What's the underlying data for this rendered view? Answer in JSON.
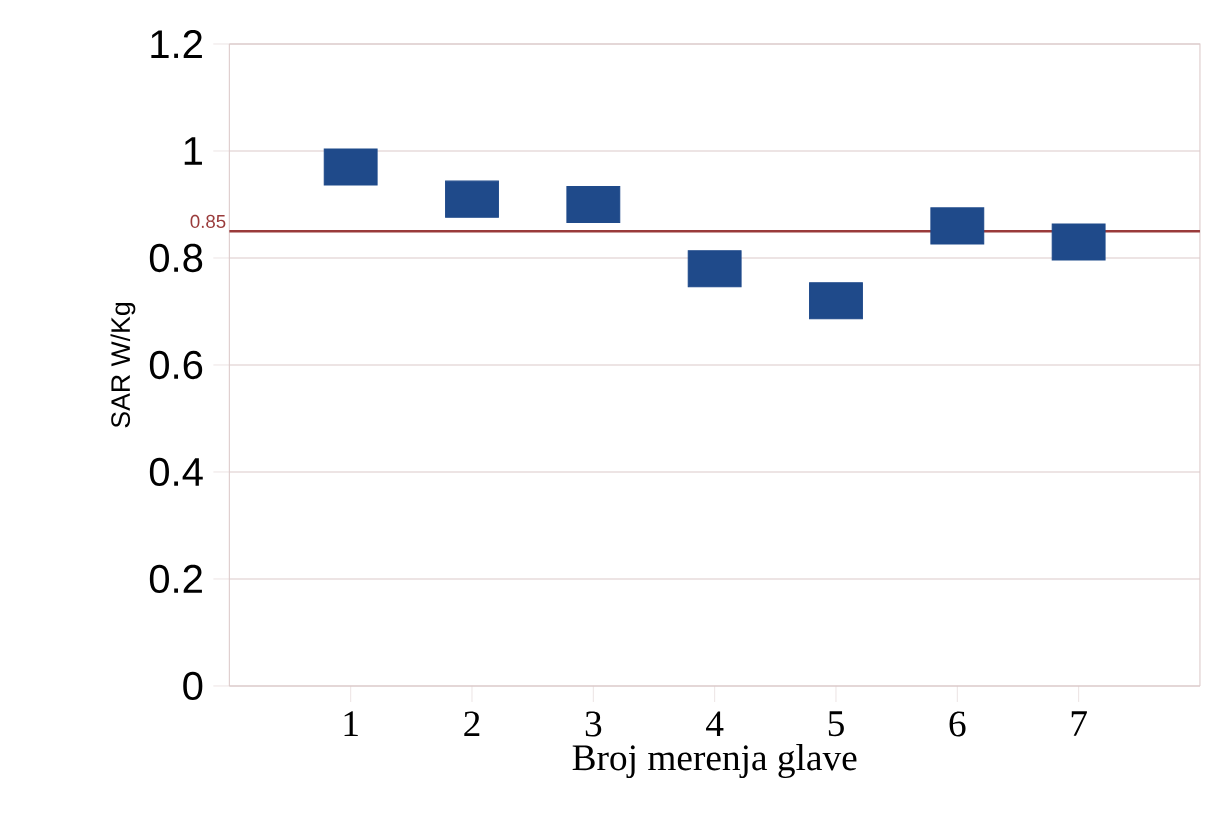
{
  "chart_data": {
    "type": "scatter",
    "xlabel": "Broj merenja glave",
    "ylabel": "SAR W/Kg",
    "categories": [
      "1",
      "2",
      "3",
      "4",
      "5",
      "6",
      "7"
    ],
    "series": [
      {
        "color": "#1f4a8a",
        "values": [
          0.97,
          0.91,
          0.9,
          0.78,
          0.72,
          0.86,
          0.83
        ]
      }
    ],
    "marker": "square",
    "ylim": [
      0,
      1.2
    ],
    "yticks": [
      0,
      0.2,
      0.4,
      0.6,
      0.8,
      1,
      1.2
    ],
    "grid": "y",
    "ref_lines": [
      {
        "axis": "y",
        "value": 0.85,
        "label": "0.85",
        "color": "#9a3b3b"
      }
    ]
  }
}
